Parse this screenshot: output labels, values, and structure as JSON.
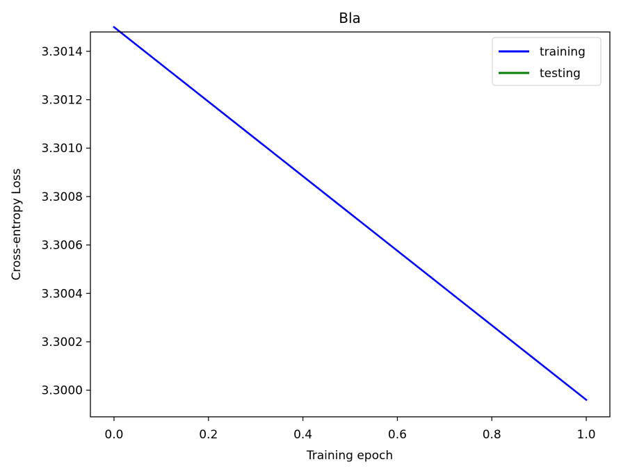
{
  "chart_data": {
    "type": "line",
    "title": "Bla",
    "xlabel": "Training epoch",
    "ylabel": "Cross-entropy Loss",
    "xlim": [
      -0.05,
      1.05
    ],
    "ylim": [
      3.29989,
      3.30148
    ],
    "x_ticks": [
      "0.0",
      "0.2",
      "0.4",
      "0.6",
      "0.8",
      "1.0"
    ],
    "y_ticks": [
      "3.3000",
      "3.3002",
      "3.3004",
      "3.3006",
      "3.3008",
      "3.3010",
      "3.3012",
      "3.3014"
    ],
    "grid": false,
    "legend_position": "top-right",
    "series": [
      {
        "name": "training",
        "color": "#0000ff",
        "x": [
          0.0,
          1.0
        ],
        "y": [
          3.3015,
          3.29996
        ]
      },
      {
        "name": "testing",
        "color": "#008000",
        "x": [],
        "y": []
      }
    ]
  }
}
